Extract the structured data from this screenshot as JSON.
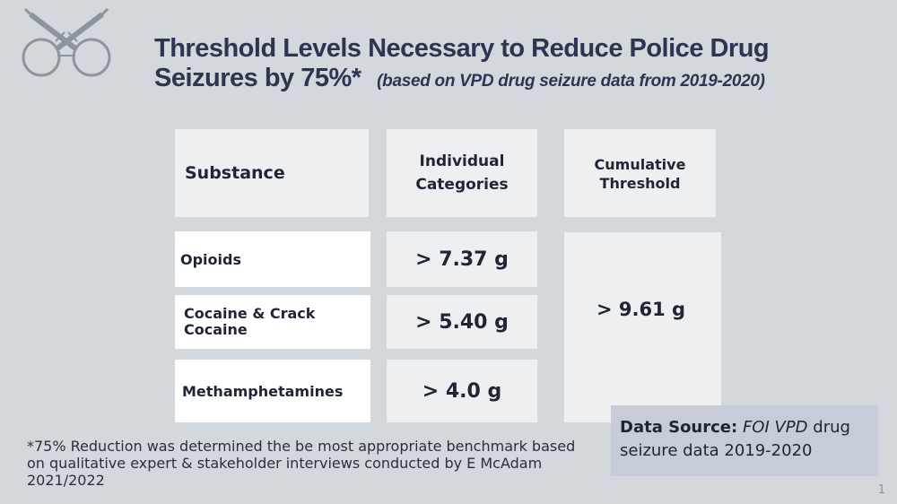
{
  "title": {
    "main": "Threshold Levels Necessary to Reduce Police Drug Seizures by 75%*",
    "subtitle": "(based on VPD drug seizure data from 2019-2020)"
  },
  "table": {
    "headers": {
      "substance": "Substance",
      "individual": "Individual Categories",
      "cumulative": "Cumulative Threshold"
    },
    "rows": [
      {
        "substance": "Opioids",
        "value": "> 7.37 g"
      },
      {
        "substance": "Cocaine & Crack Cocaine",
        "value": "> 5.40 g"
      },
      {
        "substance": "Methamphetamines",
        "value": "> 4.0 g"
      }
    ],
    "cumulative_value": "> 9.61 g"
  },
  "source": {
    "label": "Data Source:",
    "italic": "FOI VPD",
    "rest": "drug seizure data 2019-2020"
  },
  "footnote": "*75% Reduction was determined the be most appropriate benchmark based on qualitative expert & stakeholder interviews conducted by E McAdam 2021/2022",
  "page_number": "1",
  "icons": {
    "logo": "handcuffs-crossed-syringes-icon"
  },
  "colors": {
    "background": "#d3d8dd",
    "title": "#2d3550",
    "source_box": "#c6ccd8"
  }
}
